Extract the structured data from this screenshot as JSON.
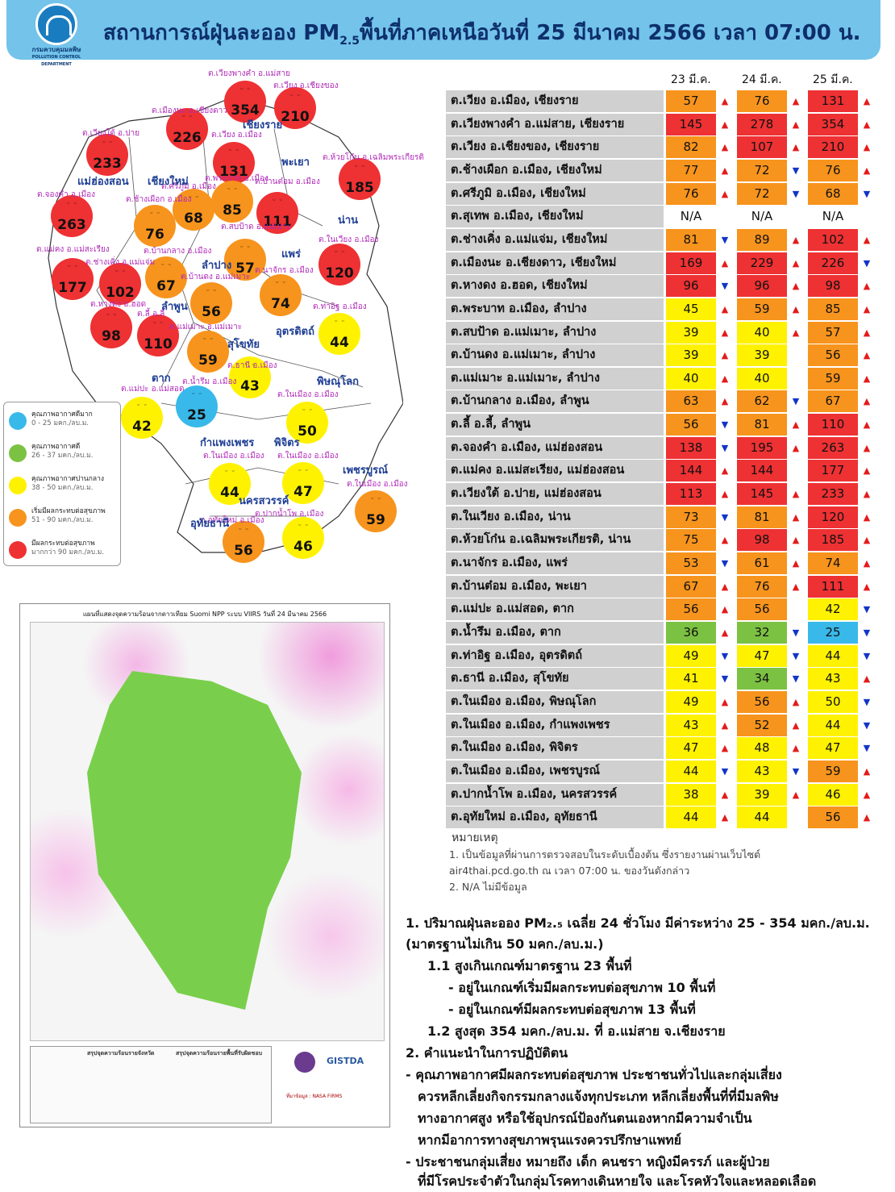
{
  "header": {
    "logo_text": "กรมควบคุมมลพิษ",
    "logo_sub": "POLLUTION CONTROL DEPARTMENT",
    "title_pre": "สถานการณ์ฝุ่นละออง PM",
    "title_sub": "2.5",
    "title_post": "พื้นที่ภาคเหนือวันที่ 25 มีนาคม 2566 เวลา 07:00 น."
  },
  "colors": {
    "good": "#39b9ea",
    "ok": "#7cc242",
    "moderate": "#fff200",
    "starting": "#f7941d",
    "unhealthy": "#ee3133",
    "header": "#73c3ea"
  },
  "map": {
    "bubbles": [
      {
        "v": "354",
        "c": "unhealthy"
      },
      {
        "v": "210",
        "c": "unhealthy"
      },
      {
        "v": "226",
        "c": "unhealthy"
      },
      {
        "v": "233",
        "c": "unhealthy"
      },
      {
        "v": "131",
        "c": "unhealthy"
      },
      {
        "v": "185",
        "c": "unhealthy"
      },
      {
        "v": "76",
        "c": "starting"
      },
      {
        "v": "68",
        "c": "starting"
      },
      {
        "v": "85",
        "c": "starting"
      },
      {
        "v": "111",
        "c": "unhealthy"
      },
      {
        "v": "263",
        "c": "unhealthy"
      },
      {
        "v": "57",
        "c": "starting"
      },
      {
        "v": "120",
        "c": "unhealthy"
      },
      {
        "v": "177",
        "c": "unhealthy"
      },
      {
        "v": "102",
        "c": "unhealthy"
      },
      {
        "v": "67",
        "c": "starting"
      },
      {
        "v": "74",
        "c": "starting"
      },
      {
        "v": "56",
        "c": "starting"
      },
      {
        "v": "98",
        "c": "unhealthy"
      },
      {
        "v": "110",
        "c": "unhealthy"
      },
      {
        "v": "59",
        "c": "starting"
      },
      {
        "v": "44",
        "c": "moderate"
      },
      {
        "v": "43",
        "c": "moderate"
      },
      {
        "v": "25",
        "c": "good"
      },
      {
        "v": "42",
        "c": "moderate"
      },
      {
        "v": "50",
        "c": "moderate"
      },
      {
        "v": "44",
        "c": "moderate"
      },
      {
        "v": "47",
        "c": "moderate"
      },
      {
        "v": "59",
        "c": "starting"
      },
      {
        "v": "56",
        "c": "starting"
      },
      {
        "v": "46",
        "c": "moderate"
      }
    ],
    "labels": [
      "ต.เวียงพางคำ อ.แม่สาย",
      "ต.เวียง อ.เชียงของ",
      "ต.เมืองนะ อ.เชียงดาว",
      "ต.เวียงใต้ อ.ปาย",
      "ต.เวียง อ.เมือง",
      "ต.ห้วยโก๋น อ.เฉลิมพระเกียรติ",
      "ต.ศรีภูมิ อ.เมือง",
      "ต.พระบาท อ.เมือง",
      "ต.บ้านต๋อม อ.เมือง",
      "ต.จองคำ อ.เมือง",
      "ต.ช้างเผือก อ.เมือง",
      "ต.สบป้าด อ.แม่เมาะ",
      "ต.ในเวียง อ.เมือง",
      "ต.แม่คง อ.แม่สะเรียง",
      "ต.บ้านกลาง อ.เมือง",
      "ต.ช่างเคิ่ง อ.แม่แจ่ม",
      "ต.นาจักร อ.เมือง",
      "ต.บ้านดง อ.แม่เมาะ",
      "ต.หางดง อ.ฮอด",
      "ต.ลี้ อ.ลี้",
      "ต.แม่เมาะ อ.แม่เมาะ",
      "ต.ท่าอิฐ อ.เมือง",
      "ต.ธานี อ.เมือง",
      "ต.น้ำรึม อ.เมือง",
      "ต.แม่ปะ อ.แม่สอด",
      "ต.ในเมือง อ.เมือง",
      "ต.ในเมือง อ.เมือง",
      "ต.ในเมือง อ.เมือง",
      "ต.ในเมือง อ.เมือง",
      "ต.อุทัยใหม่ อ.เมือง",
      "ต.ปากน้ำโพ อ.เมือง"
    ],
    "provinces": [
      "เชียงราย",
      "พะเยา",
      "แม่ฮ่องสอน",
      "เชียงใหม่",
      "น่าน",
      "แพร่",
      "ลำปาง",
      "ลำพูน",
      "อุตรดิตถ์",
      "สุโขทัย",
      "ตาก",
      "พิษณุโลก",
      "กำแพงเพชร",
      "พิจิตร",
      "เพชรบูรณ์",
      "นครสวรรค์",
      "อุทัยธานี"
    ]
  },
  "legend": [
    {
      "title": "คุณภาพอากาศดีมาก",
      "range": "0 - 25 มคก./ลบ.ม.",
      "c": "good"
    },
    {
      "title": "คุณภาพอากาศดี",
      "range": "26 - 37 มคก./ลบ.ม.",
      "c": "ok"
    },
    {
      "title": "คุณภาพอากาศปานกลาง",
      "range": "38 - 50 มคก./ลบ.ม.",
      "c": "moderate"
    },
    {
      "title": "เริ่มมีผลกระทบต่อสุขภาพ",
      "range": "51 - 90 มคก./ลบ.ม.",
      "c": "starting"
    },
    {
      "title": "มีผลกระทบต่อสุขภาพ",
      "range": "มากกว่า 90 มคก./ลบ.ม.",
      "c": "unhealthy"
    }
  ],
  "satellite": {
    "title": "แผนที่แสดงจุดความร้อนจากดาวเทียม Suomi NPP ระบบ VIIRS  วันที่ 24 มีนาคม 2566",
    "legend_title": "สรุปจุดความร้อนรายจังหวัด",
    "legend_title2": "สรุปจุดความร้อนรายพื้นที่รับผิดชอบ",
    "agency": "GISTDA",
    "source": "ที่มาข้อมูล : NASA FIRMS"
  },
  "table": {
    "headers": [
      "23 มี.ค.",
      "24 มี.ค.",
      "25 มี.ค."
    ],
    "rows": [
      {
        "name": "ต.เวียง อ.เมือง, เชียงราย",
        "d": [
          [
            "57",
            "starting",
            "up"
          ],
          [
            "76",
            "starting",
            "up"
          ],
          [
            "131",
            "unhealthy",
            "up"
          ]
        ]
      },
      {
        "name": "ต.เวียงพางคำ อ.แม่สาย, เชียงราย",
        "d": [
          [
            "145",
            "unhealthy",
            "up"
          ],
          [
            "278",
            "unhealthy",
            "up"
          ],
          [
            "354",
            "unhealthy",
            "up"
          ]
        ]
      },
      {
        "name": "ต.เวียง อ.เชียงของ, เชียงราย",
        "d": [
          [
            "82",
            "starting",
            "up"
          ],
          [
            "107",
            "unhealthy",
            "up"
          ],
          [
            "210",
            "unhealthy",
            "up"
          ]
        ]
      },
      {
        "name": "ต.ช้างเผือก อ.เมือง, เชียงใหม่",
        "d": [
          [
            "77",
            "starting",
            "up"
          ],
          [
            "72",
            "starting",
            "dn"
          ],
          [
            "76",
            "starting",
            "up"
          ]
        ]
      },
      {
        "name": "ต.ศรีภูมิ อ.เมือง, เชียงใหม่",
        "d": [
          [
            "76",
            "starting",
            "up"
          ],
          [
            "72",
            "starting",
            "dn"
          ],
          [
            "68",
            "starting",
            "dn"
          ]
        ]
      },
      {
        "name": "ต.สุเทพ อ.เมือง, เชียงใหม่",
        "d": [
          [
            "N/A",
            "none",
            ""
          ],
          [
            "N/A",
            "none",
            ""
          ],
          [
            "N/A",
            "none",
            ""
          ]
        ]
      },
      {
        "name": "ต.ช่างเคิ่ง อ.แม่แจ่ม, เชียงใหม่",
        "d": [
          [
            "81",
            "starting",
            "dn"
          ],
          [
            "89",
            "starting",
            "up"
          ],
          [
            "102",
            "unhealthy",
            "up"
          ]
        ]
      },
      {
        "name": "ต.เมืองนะ อ.เชียงดาว, เชียงใหม่",
        "d": [
          [
            "169",
            "unhealthy",
            "up"
          ],
          [
            "229",
            "unhealthy",
            "up"
          ],
          [
            "226",
            "unhealthy",
            "dn"
          ]
        ]
      },
      {
        "name": "ต.หางดง อ.ฮอด, เชียงใหม่",
        "d": [
          [
            "96",
            "unhealthy",
            "dn"
          ],
          [
            "96",
            "unhealthy",
            "up"
          ],
          [
            "98",
            "unhealthy",
            "up"
          ]
        ]
      },
      {
        "name": "ต.พระบาท อ.เมือง, ลำปาง",
        "d": [
          [
            "45",
            "moderate",
            "up"
          ],
          [
            "59",
            "starting",
            "up"
          ],
          [
            "85",
            "starting",
            "up"
          ]
        ]
      },
      {
        "name": "ต.สบป้าด อ.แม่เมาะ, ลำปาง",
        "d": [
          [
            "39",
            "moderate",
            "up"
          ],
          [
            "40",
            "moderate",
            "up"
          ],
          [
            "57",
            "starting",
            "up"
          ]
        ]
      },
      {
        "name": "ต.บ้านดง อ.แม่เมาะ, ลำปาง",
        "d": [
          [
            "39",
            "moderate",
            "up"
          ],
          [
            "39",
            "moderate",
            ""
          ],
          [
            "56",
            "starting",
            "up"
          ]
        ]
      },
      {
        "name": "ต.แม่เมาะ อ.แม่เมาะ, ลำปาง",
        "d": [
          [
            "40",
            "moderate",
            "up"
          ],
          [
            "40",
            "moderate",
            ""
          ],
          [
            "59",
            "starting",
            "up"
          ]
        ]
      },
      {
        "name": "ต.บ้านกลาง อ.เมือง, ลำพูน",
        "d": [
          [
            "63",
            "starting",
            "up"
          ],
          [
            "62",
            "starting",
            "dn"
          ],
          [
            "67",
            "starting",
            "up"
          ]
        ]
      },
      {
        "name": "ต.ลี้ อ.ลี้, ลำพูน",
        "d": [
          [
            "56",
            "starting",
            "dn"
          ],
          [
            "81",
            "starting",
            "up"
          ],
          [
            "110",
            "unhealthy",
            "up"
          ]
        ]
      },
      {
        "name": "ต.จองคำ อ.เมือง, แม่ฮ่องสอน",
        "d": [
          [
            "138",
            "unhealthy",
            "dn"
          ],
          [
            "195",
            "unhealthy",
            "up"
          ],
          [
            "263",
            "unhealthy",
            "up"
          ]
        ]
      },
      {
        "name": "ต.แม่คง อ.แม่สะเรียง, แม่ฮ่องสอน",
        "d": [
          [
            "144",
            "unhealthy",
            "up"
          ],
          [
            "144",
            "unhealthy",
            ""
          ],
          [
            "177",
            "unhealthy",
            "up"
          ]
        ]
      },
      {
        "name": "ต.เวียงใต้ อ.ปาย, แม่ฮ่องสอน",
        "d": [
          [
            "113",
            "unhealthy",
            "up"
          ],
          [
            "145",
            "unhealthy",
            "up"
          ],
          [
            "233",
            "unhealthy",
            "up"
          ]
        ]
      },
      {
        "name": "ต.ในเวียง อ.เมือง, น่าน",
        "d": [
          [
            "73",
            "starting",
            "dn"
          ],
          [
            "81",
            "starting",
            "up"
          ],
          [
            "120",
            "unhealthy",
            "up"
          ]
        ]
      },
      {
        "name": "ต.ห้วยโก๋น อ.เฉลิมพระเกียรติ, น่าน",
        "d": [
          [
            "75",
            "starting",
            "up"
          ],
          [
            "98",
            "unhealthy",
            "up"
          ],
          [
            "185",
            "unhealthy",
            "up"
          ]
        ]
      },
      {
        "name": "ต.นาจักร อ.เมือง, แพร่",
        "d": [
          [
            "53",
            "starting",
            "dn"
          ],
          [
            "61",
            "starting",
            "up"
          ],
          [
            "74",
            "starting",
            "up"
          ]
        ]
      },
      {
        "name": "ต.บ้านต๋อม อ.เมือง, พะเยา",
        "d": [
          [
            "67",
            "starting",
            "up"
          ],
          [
            "76",
            "starting",
            "up"
          ],
          [
            "111",
            "unhealthy",
            "up"
          ]
        ]
      },
      {
        "name": "ต.แม่ปะ อ.แม่สอด, ตาก",
        "d": [
          [
            "56",
            "starting",
            "up"
          ],
          [
            "56",
            "starting",
            ""
          ],
          [
            "42",
            "moderate",
            "dn"
          ]
        ]
      },
      {
        "name": "ต.น้ำรึม อ.เมือง, ตาก",
        "d": [
          [
            "36",
            "ok",
            "up"
          ],
          [
            "32",
            "ok",
            "dn"
          ],
          [
            "25",
            "good",
            "dn"
          ]
        ]
      },
      {
        "name": "ต.ท่าอิฐ อ.เมือง, อุตรดิตถ์",
        "d": [
          [
            "49",
            "moderate",
            "dn"
          ],
          [
            "47",
            "moderate",
            "dn"
          ],
          [
            "44",
            "moderate",
            "dn"
          ]
        ]
      },
      {
        "name": "ต.ธานี อ.เมือง, สุโขทัย",
        "d": [
          [
            "41",
            "moderate",
            "dn"
          ],
          [
            "34",
            "ok",
            "dn"
          ],
          [
            "43",
            "moderate",
            "up"
          ]
        ]
      },
      {
        "name": "ต.ในเมือง อ.เมือง, พิษณุโลก",
        "d": [
          [
            "49",
            "moderate",
            "up"
          ],
          [
            "56",
            "starting",
            "up"
          ],
          [
            "50",
            "moderate",
            "dn"
          ]
        ]
      },
      {
        "name": "ต.ในเมือง อ.เมือง, กำแพงเพชร",
        "d": [
          [
            "43",
            "moderate",
            "up"
          ],
          [
            "52",
            "starting",
            "up"
          ],
          [
            "44",
            "moderate",
            "dn"
          ]
        ]
      },
      {
        "name": "ต.ในเมือง อ.เมือง, พิจิตร",
        "d": [
          [
            "47",
            "moderate",
            "up"
          ],
          [
            "48",
            "moderate",
            "up"
          ],
          [
            "47",
            "moderate",
            "dn"
          ]
        ]
      },
      {
        "name": "ต.ในเมือง อ.เมือง, เพชรบูรณ์",
        "d": [
          [
            "44",
            "moderate",
            "dn"
          ],
          [
            "43",
            "moderate",
            "dn"
          ],
          [
            "59",
            "starting",
            "up"
          ]
        ]
      },
      {
        "name": "ต.ปากน้ำโพ อ.เมือง, นครสวรรค์",
        "d": [
          [
            "38",
            "moderate",
            "up"
          ],
          [
            "39",
            "moderate",
            "up"
          ],
          [
            "46",
            "moderate",
            "up"
          ]
        ]
      },
      {
        "name": "ต.อุทัยใหม่ อ.เมือง, อุทัยธานี",
        "d": [
          [
            "44",
            "moderate",
            "up"
          ],
          [
            "44",
            "moderate",
            ""
          ],
          [
            "56",
            "starting",
            "up"
          ]
        ]
      }
    ]
  },
  "notes": {
    "heading": "หมายเหตุ",
    "n1a": "1. เป็นข้อมูลที่ผ่านการตรวจสอบในระดับเบื้องต้น ซึ่งรายงานผ่านเว็บไซต์",
    "n1b": "air4thai.pcd.go.th  ณ  เวลา 07:00  น.  ของวันดังกล่าว",
    "n2": "2.  N/A  ไม่มีข้อมูล"
  },
  "summary": {
    "l1": "1. ปริมาณฝุ่นละออง PM₂.₅  เฉลี่ย 24 ชั่วโมง มีค่าระหว่าง 25 - 354 มคก./ลบ.ม.",
    "l2": "(มาตรฐานไม่เกิน 50 มคก./ลบ.ม.)",
    "l3": "1.1 สูงเกินเกณฑ์มาตรฐาน 23 พื้นที่",
    "l4": "- อยู่ในเกณฑ์เริ่มมีผลกระทบต่อสุขภาพ 10 พื้นที่",
    "l5": "- อยู่ในเกณฑ์มีผลกระทบต่อสุขภาพ 13 พื้นที่",
    "l6": "1.2 สูงสุด 354 มคก./ลบ.ม. ที่ อ.แม่สาย จ.เชียงราย",
    "l7": "2. คำแนะนำในการปฏิบัติตน",
    "l8": "- คุณภาพอากาศมีผลกระทบต่อสุขภาพ ประชาชนทั่วไปและกลุ่มเสี่ยง",
    "l9": "ควรหลีกเลี่ยงกิจกรรมกลางแจ้งทุกประเภท หลีกเลี่ยงพื้นที่ที่มีมลพิษ",
    "l10": "ทางอากาศสูง หรือใช้อุปกรณ์ป้องกันตนเองหากมีความจำเป็น",
    "l11": "หากมีอาการทางสุขภาพรุนแรงควรปรึกษาแพทย์",
    "l12": "- ประชาชนกลุ่มเสี่ยง หมายถึง เด็ก คนชรา หญิงมีครรภ์ และผู้ป่วย",
    "l13": "ที่มีโรคประจำตัวในกลุ่มโรคทางเดินหายใจ และโรคหัวใจและหลอดเลือด"
  }
}
